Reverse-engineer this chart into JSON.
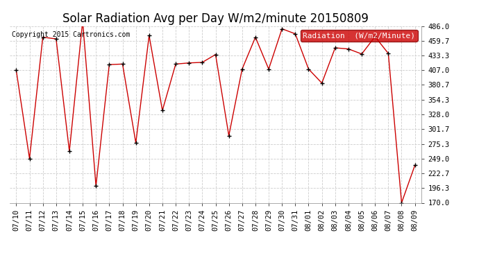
{
  "title": "Solar Radiation Avg per Day W/m2/minute 20150809",
  "copyright": "Copyright 2015 Cartronics.com",
  "legend_label": "Radiation  (W/m2/Minute)",
  "legend_bg": "#cc0000",
  "legend_text_color": "#ffffff",
  "dates": [
    "07/10",
    "07/11",
    "07/12",
    "07/13",
    "07/14",
    "07/15",
    "07/16",
    "07/17",
    "07/18",
    "07/19",
    "07/20",
    "07/21",
    "07/22",
    "07/23",
    "07/24",
    "07/25",
    "07/26",
    "07/27",
    "07/28",
    "07/29",
    "07/30",
    "07/31",
    "08/01",
    "08/02",
    "08/03",
    "08/04",
    "08/05",
    "08/06",
    "08/07",
    "08/08",
    "08/09"
  ],
  "values": [
    407.0,
    249.0,
    466.0,
    463.0,
    262.0,
    495.0,
    200.0,
    417.0,
    418.0,
    277.0,
    469.0,
    335.0,
    418.0,
    420.0,
    421.0,
    435.0,
    290.0,
    409.0,
    466.0,
    409.0,
    481.0,
    472.0,
    409.0,
    384.0,
    447.0,
    445.0,
    436.0,
    467.0,
    437.0,
    170.0,
    237.0
  ],
  "ylim": [
    170.0,
    486.0
  ],
  "yticks": [
    170.0,
    196.3,
    222.7,
    249.0,
    275.3,
    301.7,
    328.0,
    354.3,
    380.7,
    407.0,
    433.3,
    459.7,
    486.0
  ],
  "line_color": "#cc0000",
  "marker": "+",
  "marker_color": "#000000",
  "bg_color": "#ffffff",
  "plot_bg": "#ffffff",
  "grid_color": "#cccccc",
  "title_fontsize": 12,
  "copyright_fontsize": 7,
  "tick_fontsize": 7.5,
  "legend_fontsize": 8
}
